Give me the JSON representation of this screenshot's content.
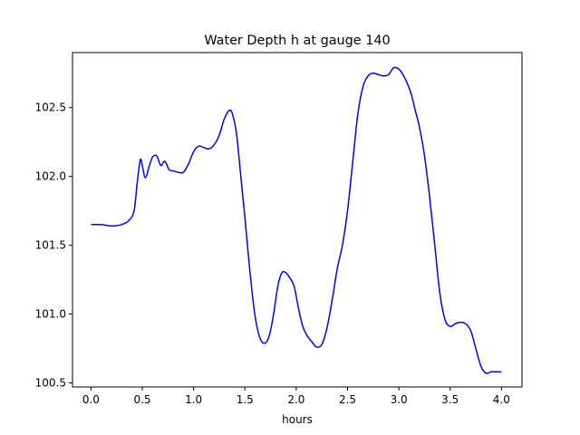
{
  "chart_data": {
    "type": "line",
    "title": "Water Depth h at gauge 140",
    "xlabel": "hours",
    "ylabel": "",
    "xlim": [
      -0.18,
      4.2
    ],
    "ylim": [
      100.47,
      102.9
    ],
    "xticks": [
      0.0,
      0.5,
      1.0,
      1.5,
      2.0,
      2.5,
      3.0,
      3.5,
      4.0
    ],
    "xtick_labels": [
      "0.0",
      "0.5",
      "1.0",
      "1.5",
      "2.0",
      "2.5",
      "3.0",
      "3.5",
      "4.0"
    ],
    "yticks": [
      100.5,
      101.0,
      101.5,
      102.0,
      102.5
    ],
    "ytick_labels": [
      "100.5",
      "101.0",
      "101.5",
      "102.0",
      "102.5"
    ],
    "grid": false,
    "legend": "none",
    "series": [
      {
        "color": "#0000ff",
        "x": [
          0.0,
          0.1,
          0.2,
          0.3,
          0.37,
          0.42,
          0.45,
          0.48,
          0.5,
          0.53,
          0.57,
          0.6,
          0.64,
          0.68,
          0.72,
          0.76,
          0.8,
          0.85,
          0.9,
          0.95,
          1.0,
          1.05,
          1.1,
          1.15,
          1.2,
          1.25,
          1.3,
          1.35,
          1.38,
          1.42,
          1.46,
          1.5,
          1.55,
          1.6,
          1.65,
          1.7,
          1.74,
          1.78,
          1.82,
          1.86,
          1.9,
          1.94,
          1.98,
          2.02,
          2.06,
          2.1,
          2.15,
          2.2,
          2.25,
          2.3,
          2.35,
          2.4,
          2.45,
          2.5,
          2.55,
          2.6,
          2.65,
          2.7,
          2.75,
          2.8,
          2.85,
          2.9,
          2.95,
          3.0,
          3.04,
          3.08,
          3.12,
          3.16,
          3.2,
          3.25,
          3.3,
          3.35,
          3.4,
          3.45,
          3.5,
          3.55,
          3.6,
          3.65,
          3.7,
          3.75,
          3.8,
          3.85,
          3.9,
          3.94,
          3.97,
          4.0
        ],
        "y": [
          101.65,
          101.65,
          101.64,
          101.65,
          101.68,
          101.75,
          101.95,
          102.12,
          102.08,
          101.99,
          102.08,
          102.14,
          102.15,
          102.08,
          102.11,
          102.05,
          102.04,
          102.03,
          102.03,
          102.09,
          102.18,
          102.22,
          102.21,
          102.2,
          102.23,
          102.3,
          102.42,
          102.48,
          102.45,
          102.3,
          102.0,
          101.7,
          101.3,
          100.98,
          100.82,
          100.79,
          100.85,
          101.0,
          101.2,
          101.3,
          101.3,
          101.26,
          101.2,
          101.05,
          100.92,
          100.85,
          100.8,
          100.76,
          100.78,
          100.9,
          101.1,
          101.33,
          101.5,
          101.75,
          102.1,
          102.45,
          102.65,
          102.73,
          102.75,
          102.74,
          102.73,
          102.74,
          102.79,
          102.78,
          102.74,
          102.68,
          102.6,
          102.48,
          102.36,
          102.15,
          101.85,
          101.5,
          101.15,
          100.96,
          100.91,
          100.93,
          100.94,
          100.93,
          100.88,
          100.75,
          100.62,
          100.57,
          100.58,
          100.58,
          100.58,
          100.58
        ]
      }
    ]
  }
}
